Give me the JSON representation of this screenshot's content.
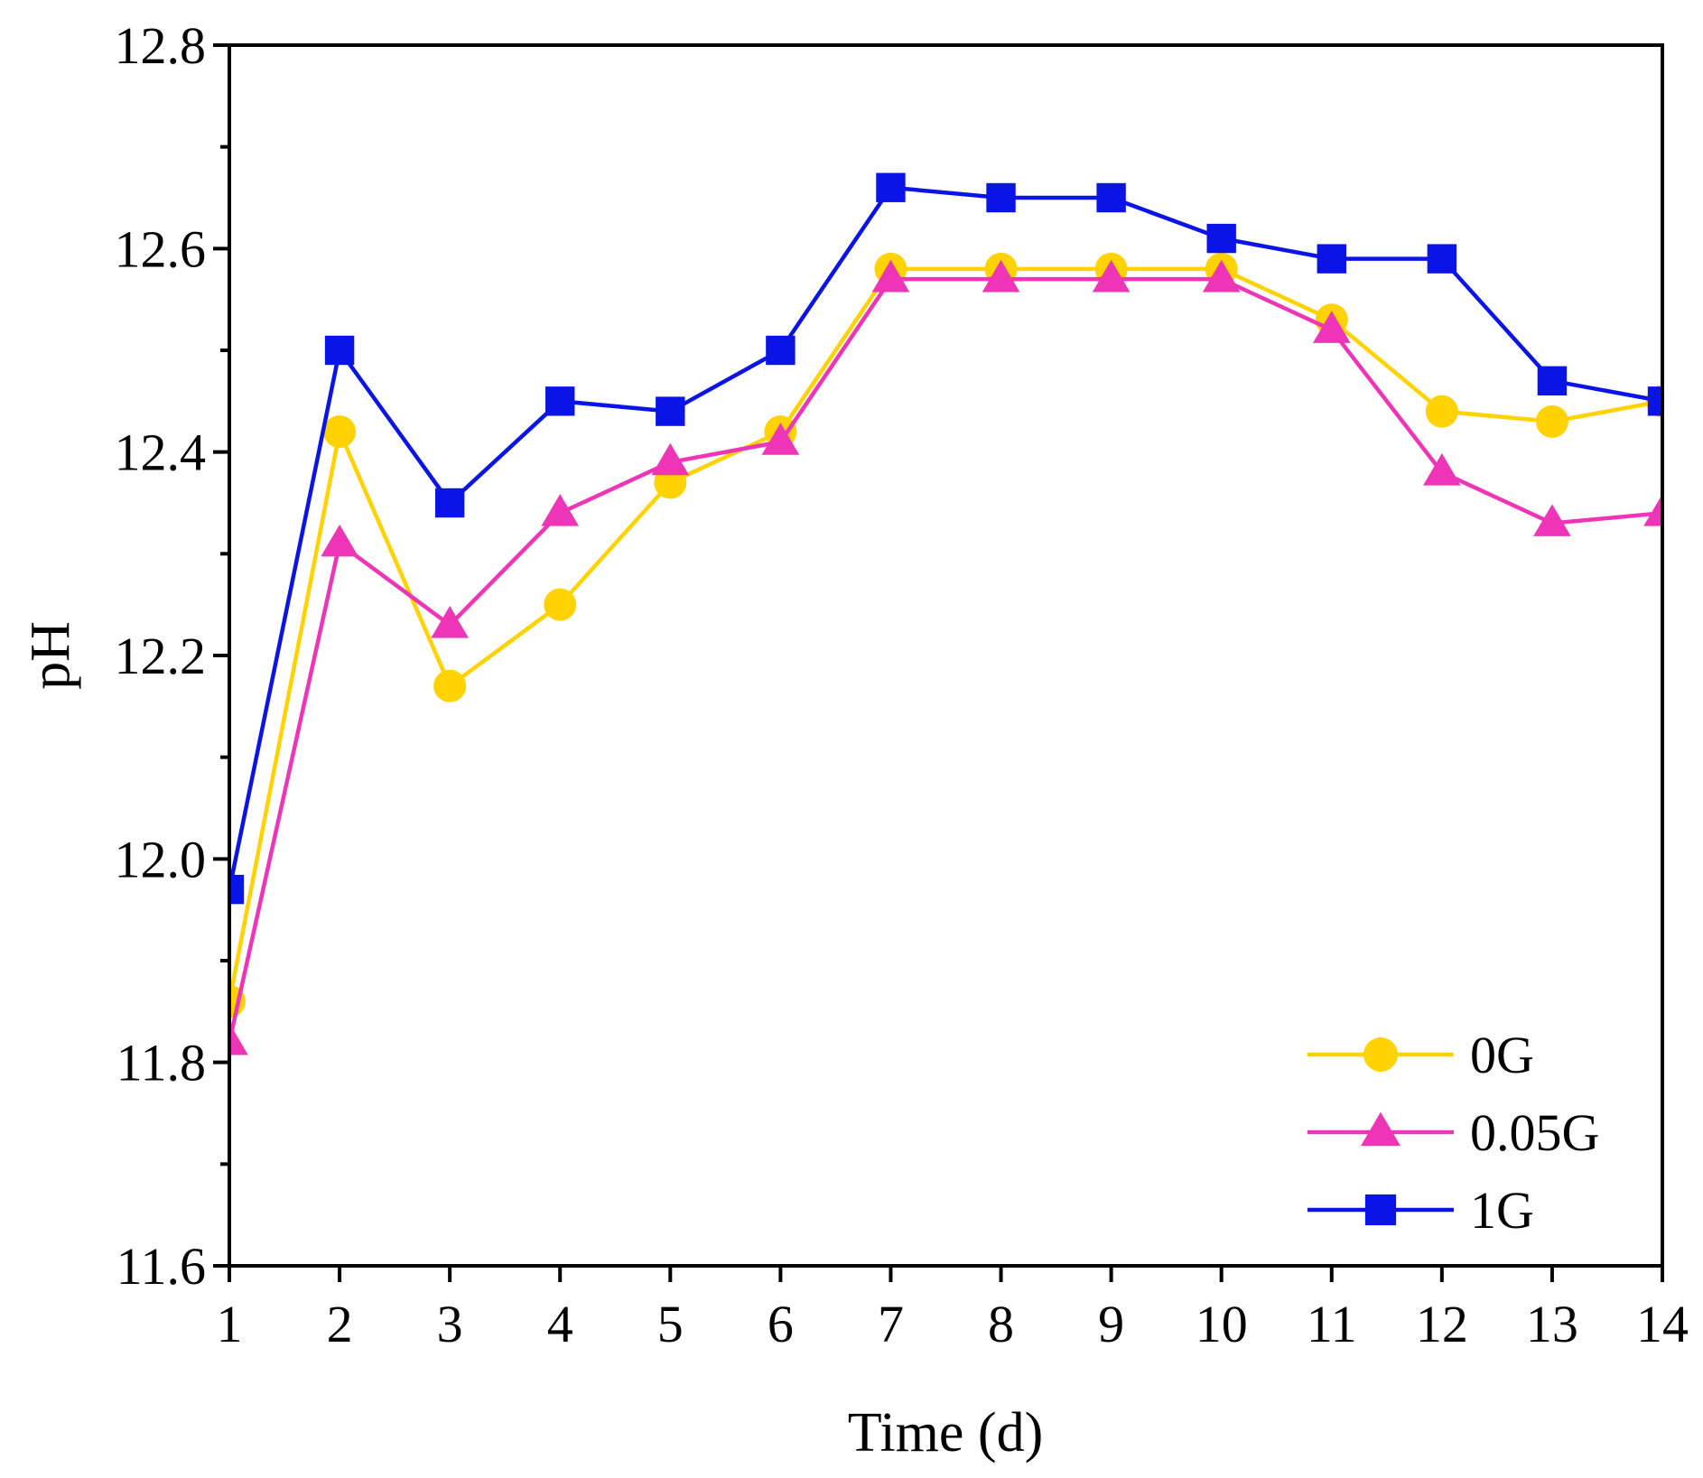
{
  "chart_data": {
    "type": "line",
    "title": "",
    "xlabel": "Time (d)",
    "ylabel": "pH",
    "xlim": [
      1,
      14
    ],
    "ylim": [
      11.6,
      12.8
    ],
    "x_ticks": [
      "1",
      "2",
      "3",
      "4",
      "5",
      "6",
      "7",
      "8",
      "9",
      "10",
      "11",
      "12",
      "13",
      "14"
    ],
    "y_ticks": [
      "11.6",
      "11.8",
      "12.0",
      "12.2",
      "12.4",
      "12.6",
      "12.8"
    ],
    "grid": false,
    "legend_position": "bottom-right",
    "x": [
      1,
      2,
      3,
      4,
      5,
      6,
      7,
      8,
      9,
      10,
      11,
      12,
      13,
      14
    ],
    "series": [
      {
        "name": "0G",
        "marker": "circle",
        "color": "#FFD200",
        "values": [
          11.86,
          12.42,
          12.17,
          12.25,
          12.37,
          12.42,
          12.58,
          12.58,
          12.58,
          12.58,
          12.53,
          12.44,
          12.43,
          12.45
        ]
      },
      {
        "name": "0.05G",
        "marker": "triangle",
        "color": "#EE35B8",
        "values": [
          11.82,
          12.31,
          12.23,
          12.34,
          12.39,
          12.41,
          12.57,
          12.57,
          12.57,
          12.57,
          12.52,
          12.38,
          12.33,
          12.34
        ]
      },
      {
        "name": "1G",
        "marker": "square",
        "color": "#0A14E6",
        "values": [
          11.97,
          12.5,
          12.35,
          12.45,
          12.44,
          12.5,
          12.66,
          12.65,
          12.65,
          12.61,
          12.59,
          12.59,
          12.47,
          12.45
        ]
      }
    ]
  }
}
